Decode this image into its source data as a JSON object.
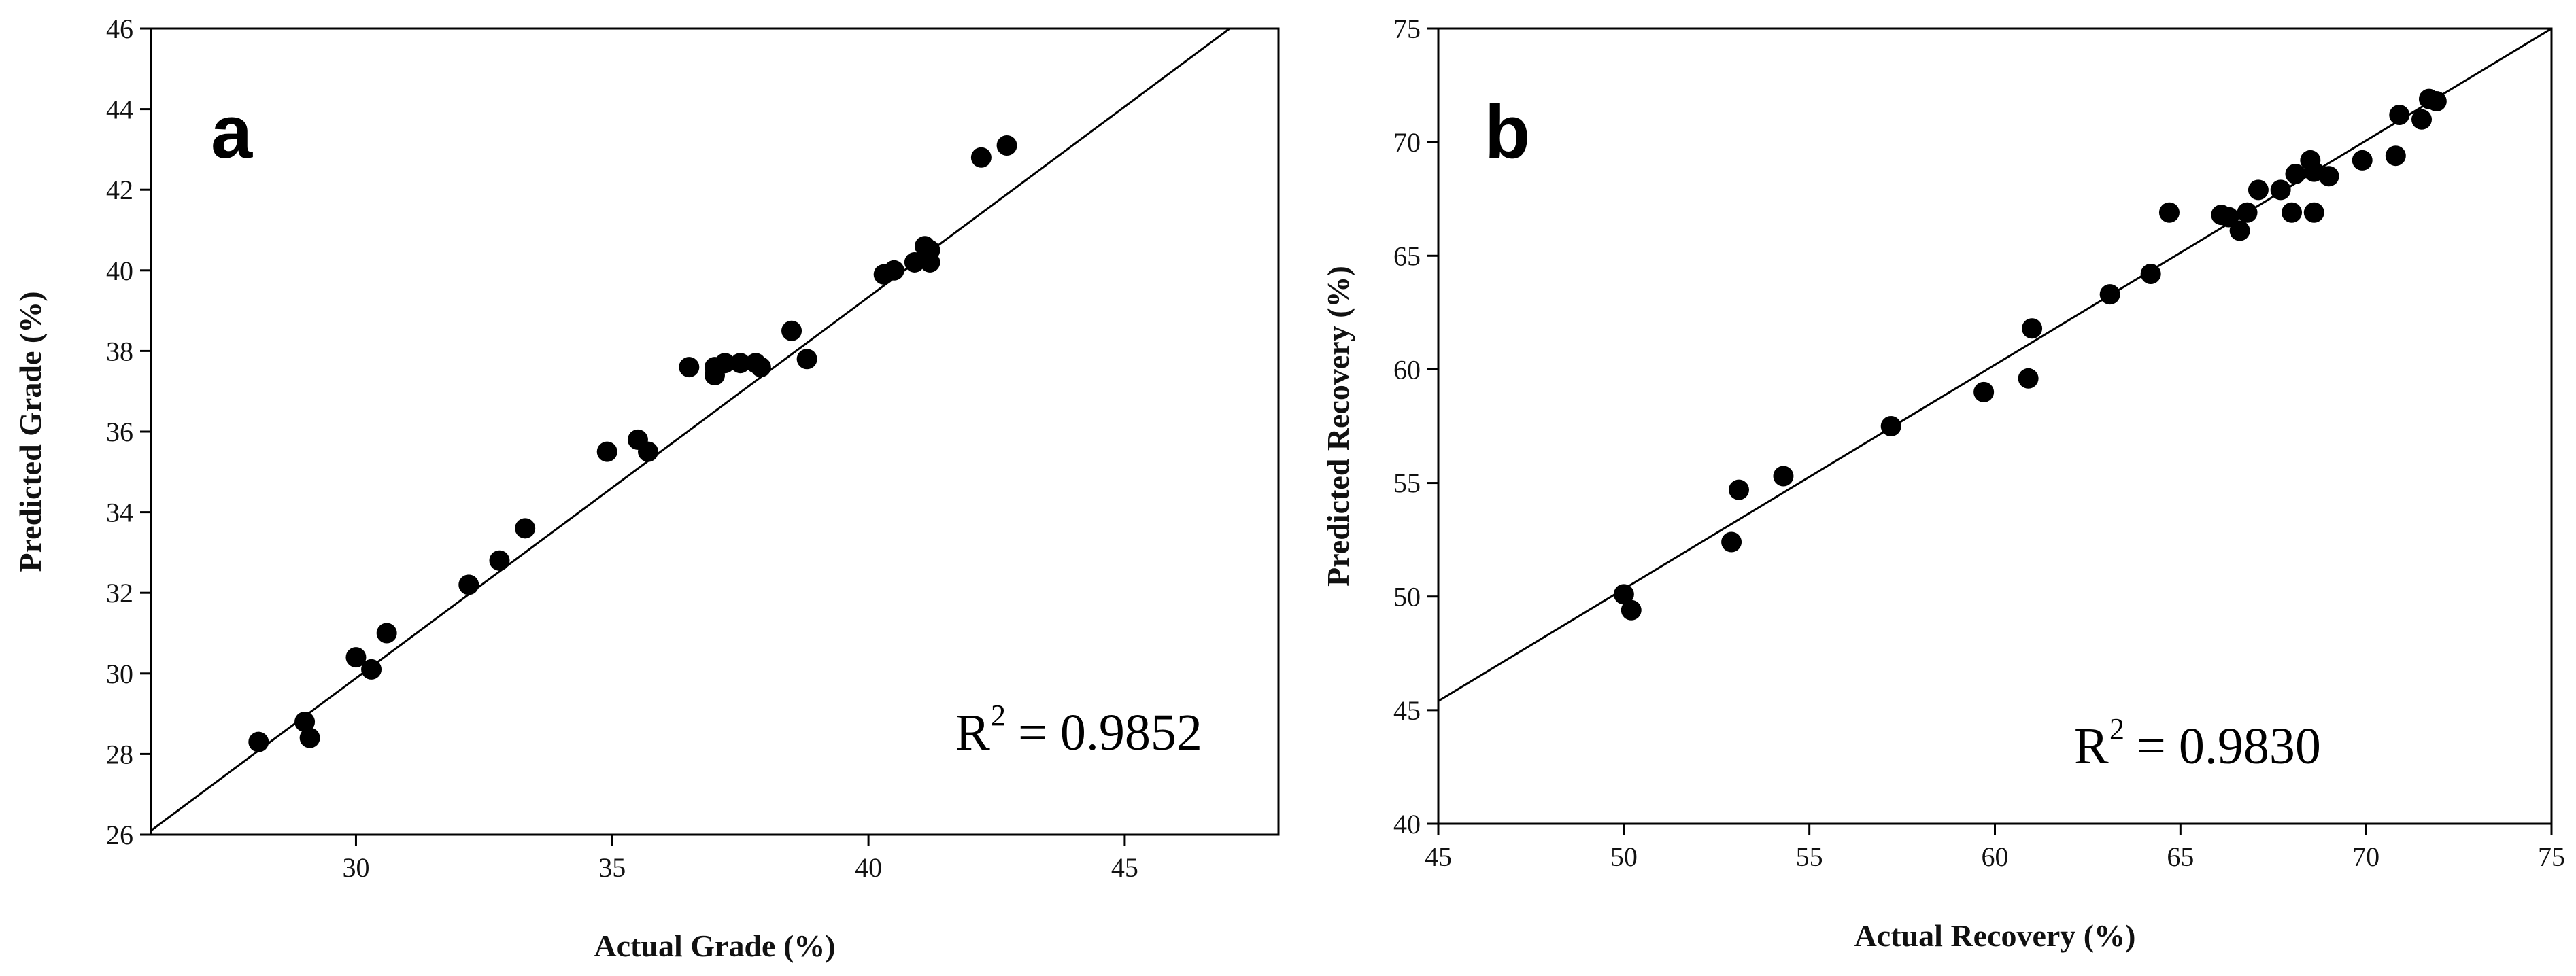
{
  "chart_data": [
    {
      "type": "scatter",
      "panel_label": "a",
      "xlabel": "Actual Grade (%)",
      "ylabel": "Predicted Grade (%)",
      "xlim": [
        26,
        48
      ],
      "ylim": [
        26,
        46
      ],
      "xticks": [
        30,
        35,
        40,
        45
      ],
      "yticks": [
        26,
        28,
        30,
        32,
        34,
        36,
        38,
        40,
        42,
        44,
        46
      ],
      "fit_line": {
        "x": [
          26,
          48
        ],
        "y": [
          26.1,
          46.9
        ]
      },
      "annotation": {
        "prefix": "R",
        "sup": "2",
        "value": "= 0.9852"
      },
      "points": [
        [
          28.1,
          28.3
        ],
        [
          29.0,
          28.8
        ],
        [
          29.1,
          28.4
        ],
        [
          30.0,
          30.4
        ],
        [
          30.3,
          30.1
        ],
        [
          30.6,
          31.0
        ],
        [
          32.2,
          32.2
        ],
        [
          32.8,
          32.8
        ],
        [
          33.3,
          33.6
        ],
        [
          34.9,
          35.5
        ],
        [
          35.5,
          35.8
        ],
        [
          35.7,
          35.5
        ],
        [
          36.5,
          37.6
        ],
        [
          37.0,
          37.6
        ],
        [
          37.0,
          37.4
        ],
        [
          37.2,
          37.7
        ],
        [
          37.5,
          37.7
        ],
        [
          37.8,
          37.7
        ],
        [
          37.9,
          37.6
        ],
        [
          38.5,
          38.5
        ],
        [
          38.8,
          37.8
        ],
        [
          40.3,
          39.9
        ],
        [
          40.5,
          40.0
        ],
        [
          40.9,
          40.2
        ],
        [
          41.1,
          40.6
        ],
        [
          41.2,
          40.5
        ],
        [
          41.2,
          40.2
        ],
        [
          42.2,
          42.8
        ],
        [
          42.7,
          43.1
        ]
      ]
    },
    {
      "type": "scatter",
      "panel_label": "b",
      "xlabel": "Actual Recovery (%)",
      "ylabel": "Predicted Recovery (%)",
      "xlim": [
        45,
        75
      ],
      "ylim": [
        40,
        75
      ],
      "xticks": [
        45,
        50,
        55,
        60,
        65,
        70,
        75
      ],
      "yticks": [
        40,
        45,
        50,
        55,
        60,
        65,
        70,
        75
      ],
      "fit_line": {
        "x": [
          45,
          75
        ],
        "y": [
          45.4,
          75.0
        ]
      },
      "annotation": {
        "prefix": "R",
        "sup": "2",
        "value": "= 0.9830"
      },
      "points": [
        [
          50.0,
          50.1
        ],
        [
          50.2,
          49.4
        ],
        [
          52.9,
          52.4
        ],
        [
          53.1,
          54.7
        ],
        [
          54.3,
          55.3
        ],
        [
          57.2,
          57.5
        ],
        [
          59.7,
          59.0
        ],
        [
          60.9,
          59.6
        ],
        [
          61.0,
          61.8
        ],
        [
          63.1,
          63.3
        ],
        [
          64.2,
          64.2
        ],
        [
          64.7,
          66.9
        ],
        [
          66.1,
          66.8
        ],
        [
          66.3,
          66.7
        ],
        [
          66.6,
          66.1
        ],
        [
          66.8,
          66.9
        ],
        [
          67.1,
          67.9
        ],
        [
          67.7,
          67.9
        ],
        [
          68.0,
          66.9
        ],
        [
          68.1,
          68.6
        ],
        [
          68.5,
          69.2
        ],
        [
          68.6,
          66.9
        ],
        [
          68.6,
          68.7
        ],
        [
          69.0,
          68.5
        ],
        [
          69.9,
          69.2
        ],
        [
          70.8,
          69.4
        ],
        [
          70.9,
          71.2
        ],
        [
          71.5,
          71.0
        ],
        [
          71.7,
          71.9
        ],
        [
          71.9,
          71.8
        ]
      ]
    }
  ]
}
